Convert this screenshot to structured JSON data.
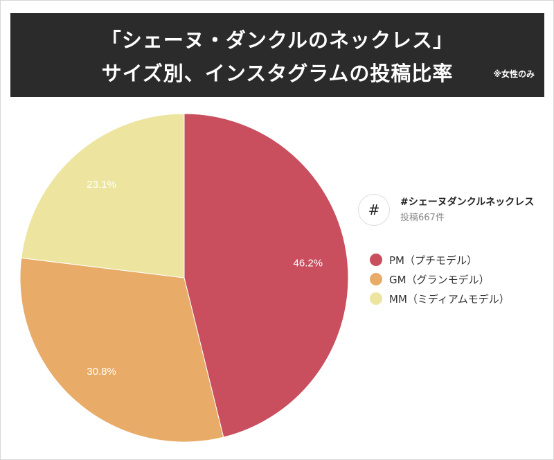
{
  "header": {
    "title_line1": "「シェーヌ・ダンクルのネックレス」",
    "title_line2": "サイズ別、インスタグラムの投稿比率",
    "note": "※女性のみ"
  },
  "hashtag": {
    "icon": "hash-icon",
    "icon_glyph": "#",
    "tag": "#シェーヌダンクルネックレス",
    "count": "投稿667件"
  },
  "chart_data": {
    "type": "pie",
    "categories": [
      "PM（プチモデル）",
      "GM（グランモデル）",
      "MM（ミディアムモデル）"
    ],
    "values": [
      46.2,
      30.8,
      23.1
    ],
    "labels": [
      "46.2%",
      "30.8%",
      "23.1%"
    ],
    "colors": [
      "#c94f5f",
      "#e8ab68",
      "#ede59f"
    ],
    "start_angle": "12 o'clock",
    "direction": "clockwise",
    "legend_position": "right"
  }
}
